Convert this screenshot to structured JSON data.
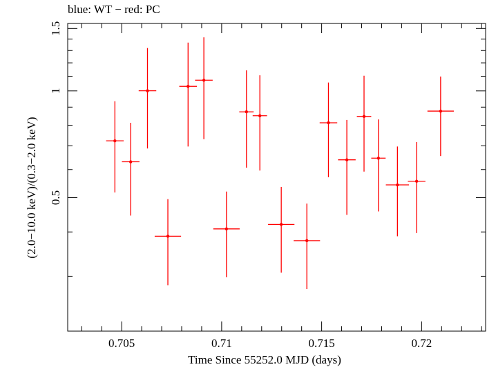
{
  "chart_data": {
    "type": "scatter",
    "title": "blue: WT − red: PC",
    "xlabel": "Time Since 55252.0 MJD (days)",
    "ylabel": "(2.0−10.0 keV)/(0.3−2.0 keV)",
    "xlim": [
      0.7023,
      0.7232
    ],
    "ylim": [
      0.21,
      1.55
    ],
    "x_ticks": [
      {
        "value": 0.705,
        "label": "0.705"
      },
      {
        "value": 0.71,
        "label": "0.71"
      },
      {
        "value": 0.715,
        "label": "0.715"
      },
      {
        "value": 0.72,
        "label": "0.72"
      }
    ],
    "y_ticks": [
      {
        "value": 0.5,
        "label": "0.5"
      },
      {
        "value": 1.0,
        "label": "1"
      },
      {
        "value": 1.5,
        "label": "1.5"
      }
    ],
    "grid": false,
    "legend": "none",
    "series": [
      {
        "color": "#ff0000",
        "points": [
          {
            "x": 0.70466,
            "y": 0.723,
            "xerr": 0.00044,
            "ylo": 0.517,
            "yhi": 0.935
          },
          {
            "x": 0.70545,
            "y": 0.631,
            "xerr": 0.00044,
            "ylo": 0.445,
            "yhi": 0.813
          },
          {
            "x": 0.70629,
            "y": 1.001,
            "xerr": 0.00044,
            "ylo": 0.688,
            "yhi": 1.321
          },
          {
            "x": 0.70731,
            "y": 0.389,
            "xerr": 0.00066,
            "ylo": 0.283,
            "yhi": 0.495
          },
          {
            "x": 0.70832,
            "y": 1.03,
            "xerr": 0.00044,
            "ylo": 0.697,
            "yhi": 1.369
          },
          {
            "x": 0.70911,
            "y": 1.072,
            "xerr": 0.00044,
            "ylo": 0.731,
            "yhi": 1.416
          },
          {
            "x": 0.71024,
            "y": 0.408,
            "xerr": 0.00066,
            "ylo": 0.298,
            "yhi": 0.52
          },
          {
            "x": 0.71124,
            "y": 0.873,
            "xerr": 0.00036,
            "ylo": 0.607,
            "yhi": 1.143
          },
          {
            "x": 0.71191,
            "y": 0.851,
            "xerr": 0.00036,
            "ylo": 0.596,
            "yhi": 1.107
          },
          {
            "x": 0.71298,
            "y": 0.42,
            "xerr": 0.00066,
            "ylo": 0.307,
            "yhi": 0.536
          },
          {
            "x": 0.71426,
            "y": 0.378,
            "xerr": 0.00066,
            "ylo": 0.276,
            "yhi": 0.481
          },
          {
            "x": 0.71534,
            "y": 0.813,
            "xerr": 0.00044,
            "ylo": 0.571,
            "yhi": 1.056
          },
          {
            "x": 0.71626,
            "y": 0.639,
            "xerr": 0.00044,
            "ylo": 0.447,
            "yhi": 0.828
          },
          {
            "x": 0.71712,
            "y": 0.847,
            "xerr": 0.00036,
            "ylo": 0.592,
            "yhi": 1.104
          },
          {
            "x": 0.71784,
            "y": 0.646,
            "xerr": 0.00036,
            "ylo": 0.457,
            "yhi": 0.831
          },
          {
            "x": 0.71879,
            "y": 0.543,
            "xerr": 0.00058,
            "ylo": 0.389,
            "yhi": 0.697
          },
          {
            "x": 0.71975,
            "y": 0.556,
            "xerr": 0.00044,
            "ylo": 0.397,
            "yhi": 0.717
          },
          {
            "x": 0.72095,
            "y": 0.877,
            "xerr": 0.00066,
            "ylo": 0.655,
            "yhi": 1.098
          }
        ]
      }
    ]
  }
}
